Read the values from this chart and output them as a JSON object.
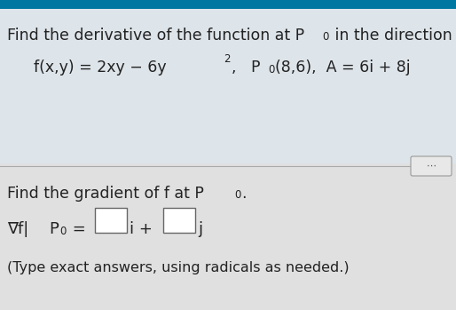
{
  "bg_color": "#e0e0e0",
  "top_stripe_color": "#0077a0",
  "top_section_color": "#dde4ea",
  "bottom_section_color": "#e0e0e0",
  "text_color": "#222222",
  "box_color": "#ffffff",
  "box_edge": "#666666",
  "divider_color": "#aaaaaa",
  "dots_bg": "#e8e8e8",
  "dots_edge": "#999999",
  "title_line": "Find the derivative of the function at P",
  "title_p_sub": "0",
  "title_suffix": " in the direction of A.",
  "func_main": "f(x,y) = 2xy − 6y",
  "func_sup": "2",
  "func_rest": ",   P",
  "func_p_sub": "0",
  "func_coords": "(8,6),",
  "func_A": "  A = 6i + 8j",
  "grad_label": "Find the gradient of f at P",
  "grad_sub": "0",
  "grad_dot": ".",
  "vf_nabla": "∇f|",
  "vf_P": "P",
  "vf_P_sub": "0",
  "vf_eq": " = ",
  "vf_i": "i + ",
  "vf_j": "j",
  "note": "(Type exact answers, using radicals as needed.)",
  "fontsize_title": 12.5,
  "fontsize_func": 12.5,
  "fontsize_sub": 8.5,
  "fontsize_note": 11.5,
  "fontsize_vf": 13.0
}
